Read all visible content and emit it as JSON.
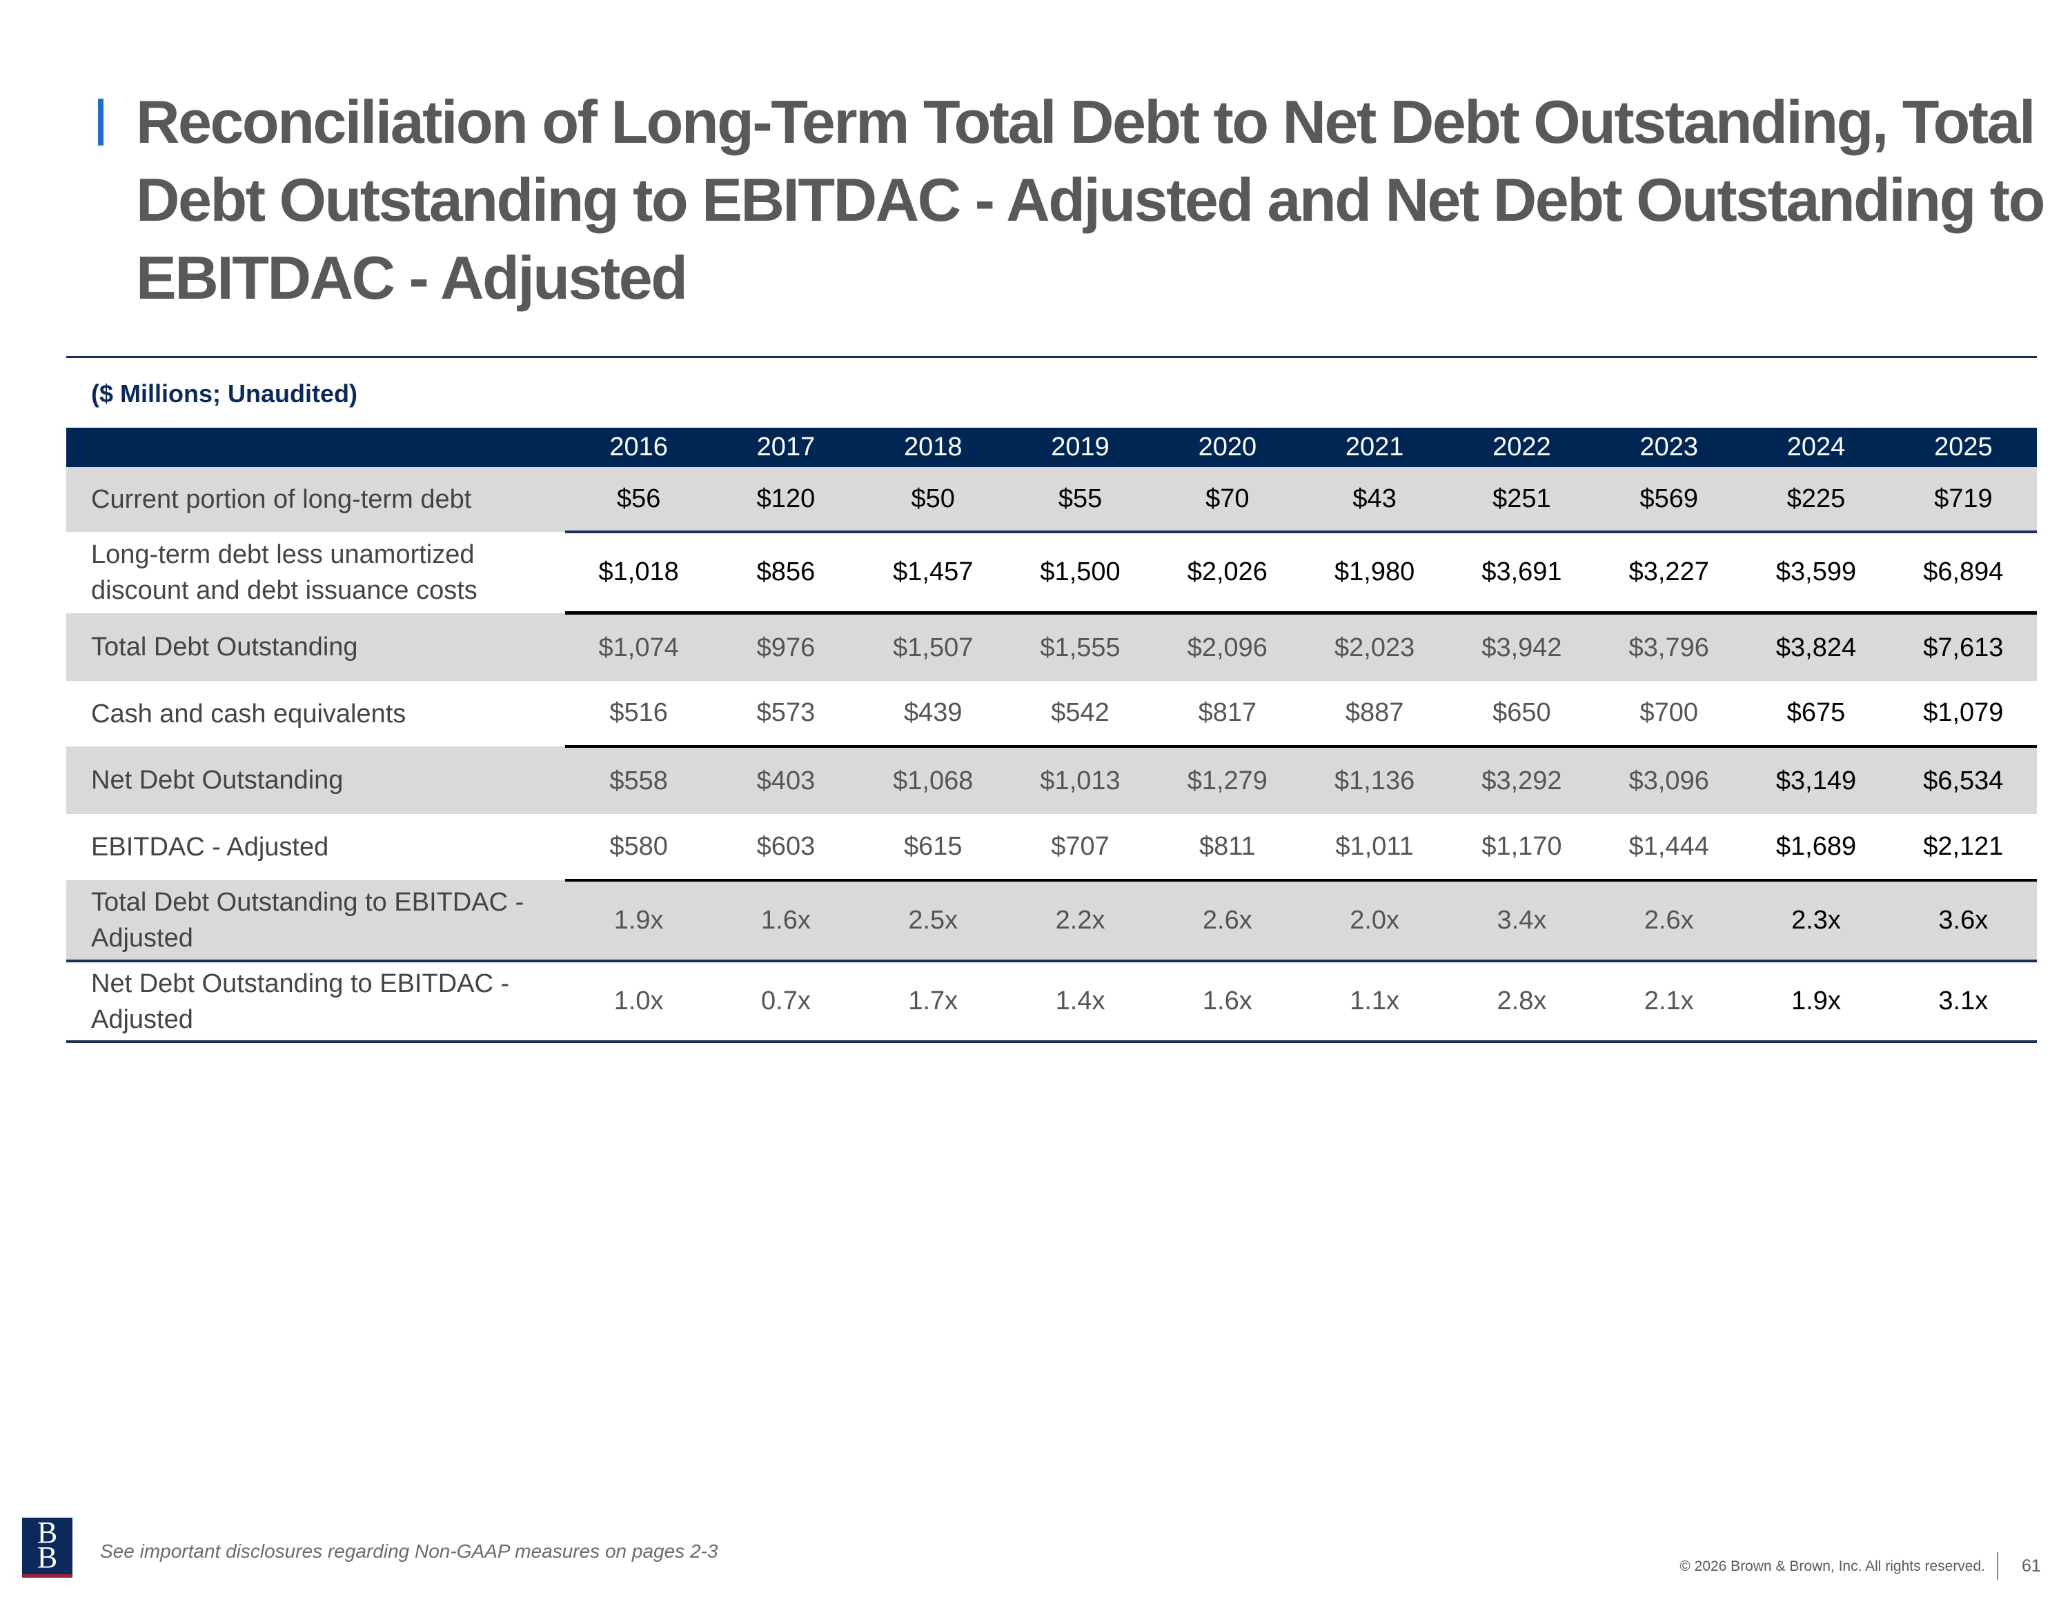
{
  "title": "Reconciliation of Long-Term Total Debt to Net Debt Outstanding, Total Debt Outstanding to EBITDAC - Adjusted and Net Debt Outstanding to EBITDAC - Adjusted",
  "subtitle": "($ Millions; Unaudited)",
  "table": {
    "years": [
      "2016",
      "2017",
      "2018",
      "2019",
      "2020",
      "2021",
      "2022",
      "2023",
      "2024",
      "2025"
    ],
    "rows": [
      {
        "label": "Current portion of long-term debt",
        "values": [
          "$56",
          "$120",
          "$50",
          "$55",
          "$70",
          "$43",
          "$251",
          "$569",
          "$225",
          "$719"
        ]
      },
      {
        "label": "Long-term debt less unamortized discount and debt issuance costs",
        "values": [
          "$1,018",
          "$856",
          "$1,457",
          "$1,500",
          "$2,026",
          "$1,980",
          "$3,691",
          "$3,227",
          "$3,599",
          "$6,894"
        ]
      },
      {
        "label": "Total Debt Outstanding",
        "values": [
          "$1,074",
          "$976",
          "$1,507",
          "$1,555",
          "$2,096",
          "$2,023",
          "$3,942",
          "$3,796",
          "$3,824",
          "$7,613"
        ]
      },
      {
        "label": "Cash and cash equivalents",
        "values": [
          "$516",
          "$573",
          "$439",
          "$542",
          "$817",
          "$887",
          "$650",
          "$700",
          "$675",
          "$1,079"
        ]
      },
      {
        "label": "Net Debt Outstanding",
        "values": [
          "$558",
          "$403",
          "$1,068",
          "$1,013",
          "$1,279",
          "$1,136",
          "$3,292",
          "$3,096",
          "$3,149",
          "$6,534"
        ]
      },
      {
        "label": "EBITDAC - Adjusted",
        "values": [
          "$580",
          "$603",
          "$615",
          "$707",
          "$811",
          "$1,011",
          "$1,170",
          "$1,444",
          "$1,689",
          "$2,121"
        ]
      },
      {
        "label": "Total Debt Outstanding to EBITDAC - Adjusted",
        "values": [
          "1.9x",
          "1.6x",
          "2.5x",
          "2.2x",
          "2.6x",
          "2.0x",
          "3.4x",
          "2.6x",
          "2.3x",
          "3.6x"
        ]
      },
      {
        "label": "Net Debt Outstanding to EBITDAC - Adjusted",
        "values": [
          "1.0x",
          "0.7x",
          "1.7x",
          "1.4x",
          "1.6x",
          "1.1x",
          "2.8x",
          "2.1x",
          "1.9x",
          "3.1x"
        ]
      }
    ]
  },
  "footer": {
    "logo_text": "BB",
    "disclaimer": "See important disclosures regarding Non-GAAP measures on pages 2-3",
    "copyright": "© 2026 Brown & Brown, Inc. All rights reserved.",
    "page_number": "61"
  },
  "colors": {
    "header_navy": "#002654",
    "title_accent": "#1f6fc5",
    "row_shade": "#d9d9d9"
  }
}
